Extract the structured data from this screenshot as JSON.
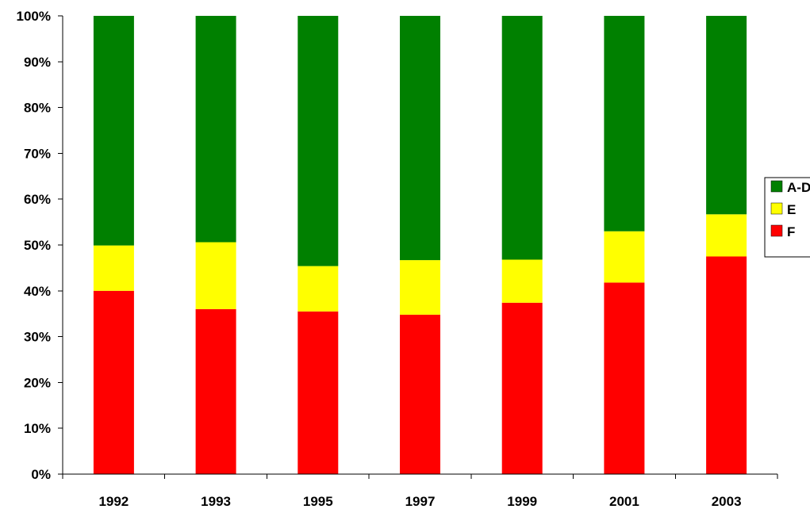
{
  "chart_data": {
    "type": "bar",
    "stacked": true,
    "percent_stacked": true,
    "categories": [
      "1992",
      "1993",
      "1995",
      "1997",
      "1999",
      "2001",
      "2003"
    ],
    "series": [
      {
        "name": "F",
        "color": "#ff0000",
        "values": [
          40.0,
          36.0,
          35.5,
          34.8,
          37.4,
          41.8,
          47.5
        ]
      },
      {
        "name": "E",
        "color": "#ffff00",
        "values": [
          9.9,
          14.6,
          9.9,
          11.9,
          9.4,
          11.2,
          9.2
        ]
      },
      {
        "name": "A-D",
        "color": "#008000",
        "values": [
          50.1,
          49.4,
          54.6,
          53.3,
          53.2,
          47.0,
          43.3
        ]
      }
    ],
    "y_ticks": [
      "0%",
      "10%",
      "20%",
      "30%",
      "40%",
      "50%",
      "60%",
      "70%",
      "80%",
      "90%",
      "100%"
    ],
    "ylim": [
      0,
      100
    ],
    "legend_position": "right"
  }
}
